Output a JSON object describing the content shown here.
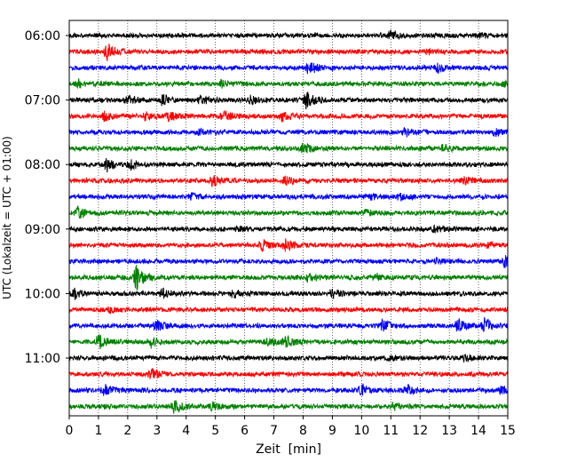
{
  "chart_data": {
    "type": "line",
    "title": "",
    "xlabel": "Zeit  [min]",
    "ylabel": "UTC (Lokalzeit = UTC + 01:00)",
    "xlim": [
      0,
      15
    ],
    "x_ticks": [
      0,
      1,
      2,
      3,
      4,
      5,
      6,
      7,
      8,
      9,
      10,
      11,
      12,
      13,
      14,
      15
    ],
    "y_tick_labels": [
      "06:00",
      "07:00",
      "08:00",
      "09:00",
      "10:00",
      "11:00"
    ],
    "y_tick_trace_index": [
      0,
      4,
      8,
      12,
      16,
      20
    ],
    "trace_interval_min": 15,
    "grid": "vertical dotted lines at each minute",
    "series_colors": [
      "#000000",
      "#ff0000",
      "#0000ff",
      "#008000"
    ],
    "traces": [
      {
        "start": "06:00",
        "events": [
          [
            11.0,
            4
          ],
          [
            14.0,
            2
          ]
        ]
      },
      {
        "start": "06:15",
        "events": [
          [
            1.3,
            9
          ],
          [
            12.3,
            2
          ]
        ]
      },
      {
        "start": "06:30",
        "events": [
          [
            8.2,
            7
          ],
          [
            12.6,
            5
          ]
        ]
      },
      {
        "start": "06:45",
        "events": [
          [
            0.3,
            4
          ],
          [
            5.2,
            3
          ],
          [
            14.9,
            4
          ]
        ]
      },
      {
        "start": "07:00",
        "events": [
          [
            2.0,
            4
          ],
          [
            3.2,
            6
          ],
          [
            4.5,
            4
          ],
          [
            6.2,
            4
          ],
          [
            8.1,
            9
          ]
        ]
      },
      {
        "start": "07:15",
        "events": [
          [
            1.2,
            5
          ],
          [
            2.6,
            4
          ],
          [
            3.4,
            5
          ],
          [
            5.3,
            5
          ],
          [
            7.3,
            5
          ]
        ]
      },
      {
        "start": "07:30",
        "events": [
          [
            4.5,
            3
          ],
          [
            11.5,
            4
          ],
          [
            14.6,
            3
          ]
        ]
      },
      {
        "start": "07:45",
        "events": [
          [
            8.0,
            6
          ],
          [
            12.8,
            4
          ]
        ]
      },
      {
        "start": "08:00",
        "events": [
          [
            1.3,
            8
          ],
          [
            2.1,
            6
          ]
        ]
      },
      {
        "start": "08:15",
        "events": [
          [
            4.9,
            6
          ],
          [
            7.4,
            4
          ],
          [
            13.5,
            4
          ]
        ]
      },
      {
        "start": "08:30",
        "events": [
          [
            4.2,
            3
          ],
          [
            10.3,
            3
          ],
          [
            11.3,
            3
          ]
        ]
      },
      {
        "start": "08:45",
        "events": [
          [
            0.3,
            6
          ],
          [
            10.1,
            3
          ]
        ]
      },
      {
        "start": "09:00",
        "events": [
          [
            5.8,
            3
          ],
          [
            12.5,
            3
          ]
        ]
      },
      {
        "start": "09:15",
        "events": [
          [
            6.6,
            6
          ],
          [
            7.4,
            6
          ],
          [
            14.3,
            3
          ]
        ]
      },
      {
        "start": "09:30",
        "events": [
          [
            14.9,
            6
          ],
          [
            12.6,
            3
          ]
        ]
      },
      {
        "start": "09:45",
        "events": [
          [
            2.3,
            14
          ],
          [
            8.2,
            5
          ],
          [
            10.5,
            3
          ]
        ]
      },
      {
        "start": "10:00",
        "events": [
          [
            0.2,
            5
          ],
          [
            3.2,
            5
          ],
          [
            5.6,
            4
          ],
          [
            9.0,
            4
          ]
        ]
      },
      {
        "start": "10:15",
        "events": [
          [
            1.4,
            3
          ]
        ]
      },
      {
        "start": "10:30",
        "events": [
          [
            3.0,
            5
          ],
          [
            10.7,
            6
          ],
          [
            13.3,
            6
          ],
          [
            14.2,
            9
          ]
        ]
      },
      {
        "start": "10:45",
        "events": [
          [
            1.0,
            8
          ],
          [
            2.8,
            5
          ],
          [
            6.8,
            4
          ],
          [
            7.4,
            7
          ]
        ]
      },
      {
        "start": "11:00",
        "events": [
          [
            11.0,
            3
          ],
          [
            13.5,
            3
          ]
        ]
      },
      {
        "start": "11:15",
        "events": [
          [
            2.8,
            5
          ]
        ]
      },
      {
        "start": "11:30",
        "events": [
          [
            1.2,
            7
          ],
          [
            10.0,
            6
          ],
          [
            11.5,
            6
          ],
          [
            14.8,
            4
          ]
        ]
      },
      {
        "start": "11:45",
        "events": [
          [
            3.6,
            7
          ],
          [
            4.9,
            4
          ],
          [
            11.1,
            4
          ]
        ]
      }
    ]
  }
}
